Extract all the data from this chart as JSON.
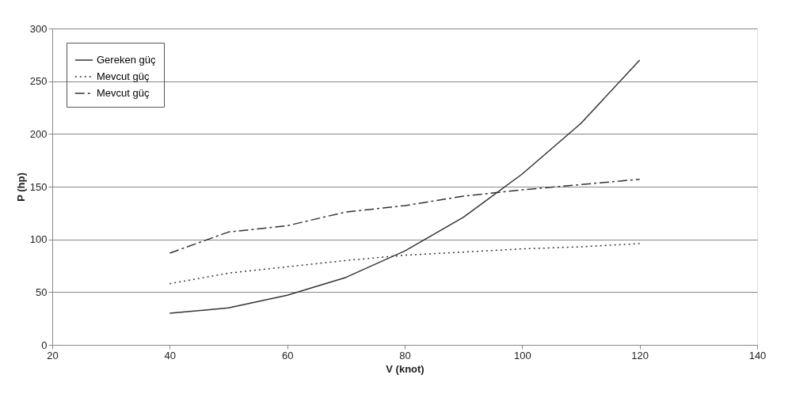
{
  "chart_data": {
    "type": "line",
    "xlabel": "V (knot)",
    "ylabel": "P (hp)",
    "x": [
      40,
      50,
      60,
      70,
      80,
      90,
      100,
      110,
      120
    ],
    "series": [
      {
        "name": "Gereken güç",
        "color": "#333333",
        "line_style": "solid",
        "values": [
          30,
          35,
          47,
          64,
          89,
          121,
          162,
          210,
          270
        ]
      },
      {
        "name": "Mevcut güç",
        "color": "#333333",
        "line_style": "dotted",
        "values": [
          58,
          68,
          74,
          80,
          85,
          88,
          91,
          93,
          96
        ]
      },
      {
        "name": "Mevcut güç",
        "color": "#333333",
        "line_style": "dashed",
        "values": [
          87,
          107,
          113,
          126,
          132,
          141,
          147,
          152,
          157
        ]
      }
    ],
    "xlim": [
      20,
      140
    ],
    "xticks": [
      20,
      40,
      60,
      80,
      100,
      120,
      140
    ],
    "ylim": [
      0,
      300
    ],
    "yticks": [
      0,
      50,
      100,
      150,
      200,
      250,
      300
    ],
    "grid": "y",
    "legend": "top left",
    "marker": "none"
  }
}
